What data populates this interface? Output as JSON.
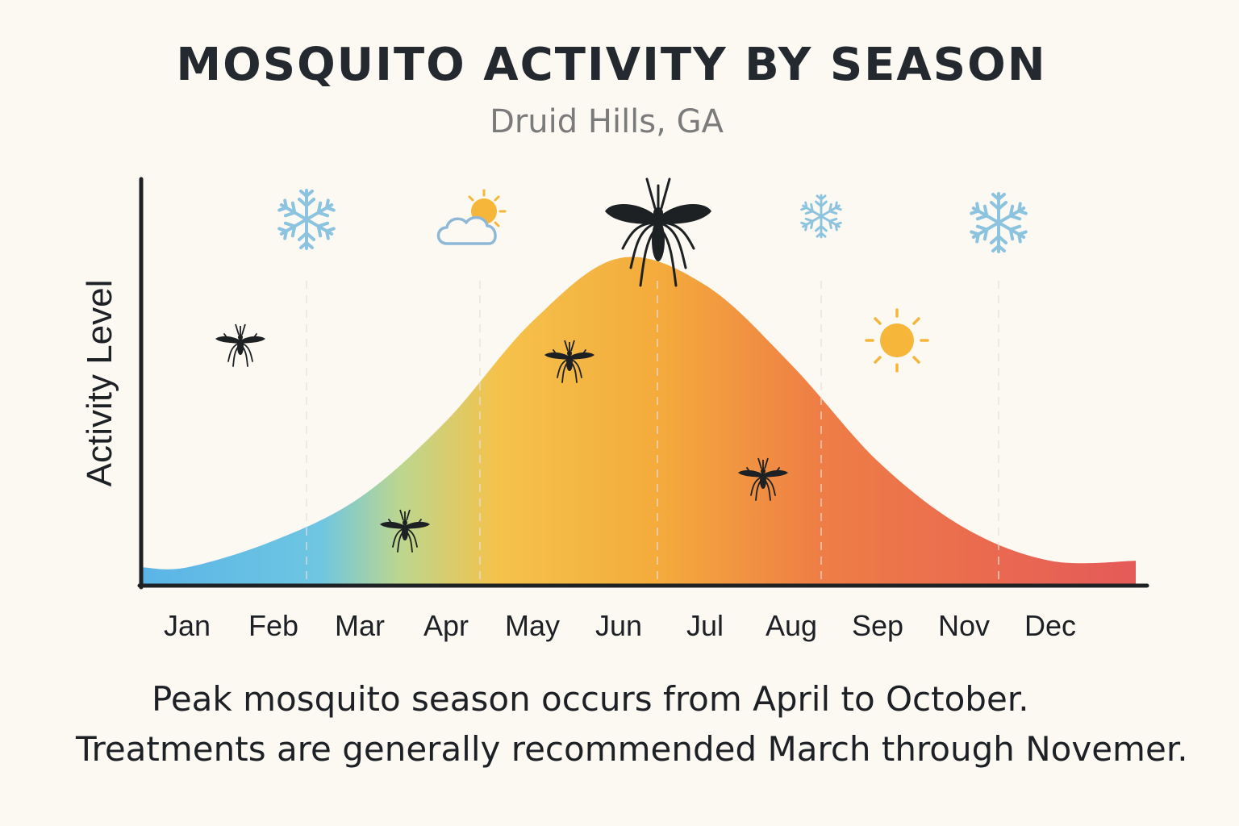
{
  "title": "MOSQUITO ACTIVITY BY SEASON",
  "subtitle": "Druid Hills, GA",
  "chart_data": {
    "type": "area",
    "title": "MOSQUITO ACTIVITY BY SEASON",
    "subtitle": "Druid Hills, GA",
    "xlabel": "",
    "ylabel": "Activity Level",
    "categories": [
      "Jan",
      "Feb",
      "Mar",
      "Apr",
      "May",
      "Jun",
      "Jul",
      "Aug",
      "Sep",
      "Nov",
      "Dec"
    ],
    "series": [
      {
        "values": [
          0.05,
          0.13,
          0.26,
          0.49,
          0.79,
          0.98,
          0.9,
          0.66,
          0.37,
          0.17,
          0.07
        ]
      }
    ],
    "ylim": [
      0,
      1
    ],
    "grid": false,
    "legend": "none",
    "gradient_colors": [
      "#5ab4e6",
      "#7fcfd6",
      "#f5c24a",
      "#f3a03e",
      "#ec6f4d",
      "#e45a58"
    ],
    "icons": [
      "snowflake-icon",
      "partly-cloudy-icon",
      "mosquito-icon",
      "snowflake-icon",
      "sun-icon",
      "snowflake-icon"
    ]
  },
  "footnote": {
    "line1": "Peak mosquito season occurs from April to October.",
    "line2": "Treatments are generally recommended March through Novemer."
  }
}
